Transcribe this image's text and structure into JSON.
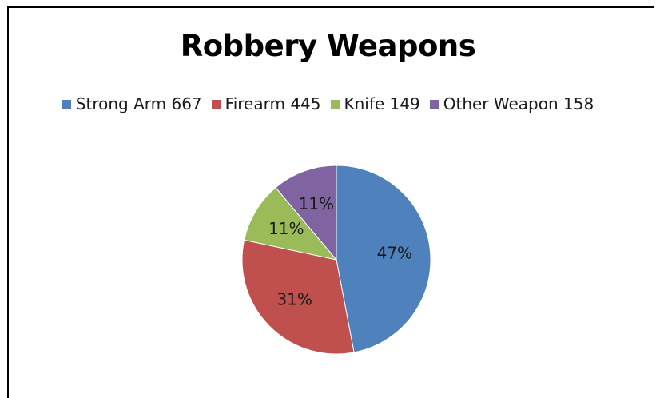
{
  "chart_data": {
    "type": "pie",
    "title": "Robbery Weapons",
    "legend_position": "top",
    "slices": [
      {
        "legend_label": "Strong Arm 667",
        "value": 667,
        "percent_label": "47%",
        "color": "#4f81bd"
      },
      {
        "legend_label": "Firearm 445",
        "value": 445,
        "percent_label": "31%",
        "color": "#c0504d"
      },
      {
        "legend_label": "Knife 149",
        "value": 149,
        "percent_label": "11%",
        "color": "#9bbb59"
      },
      {
        "legend_label": "Other Weapon 158",
        "value": 158,
        "percent_label": "11%",
        "color": "#8064a2"
      }
    ]
  }
}
